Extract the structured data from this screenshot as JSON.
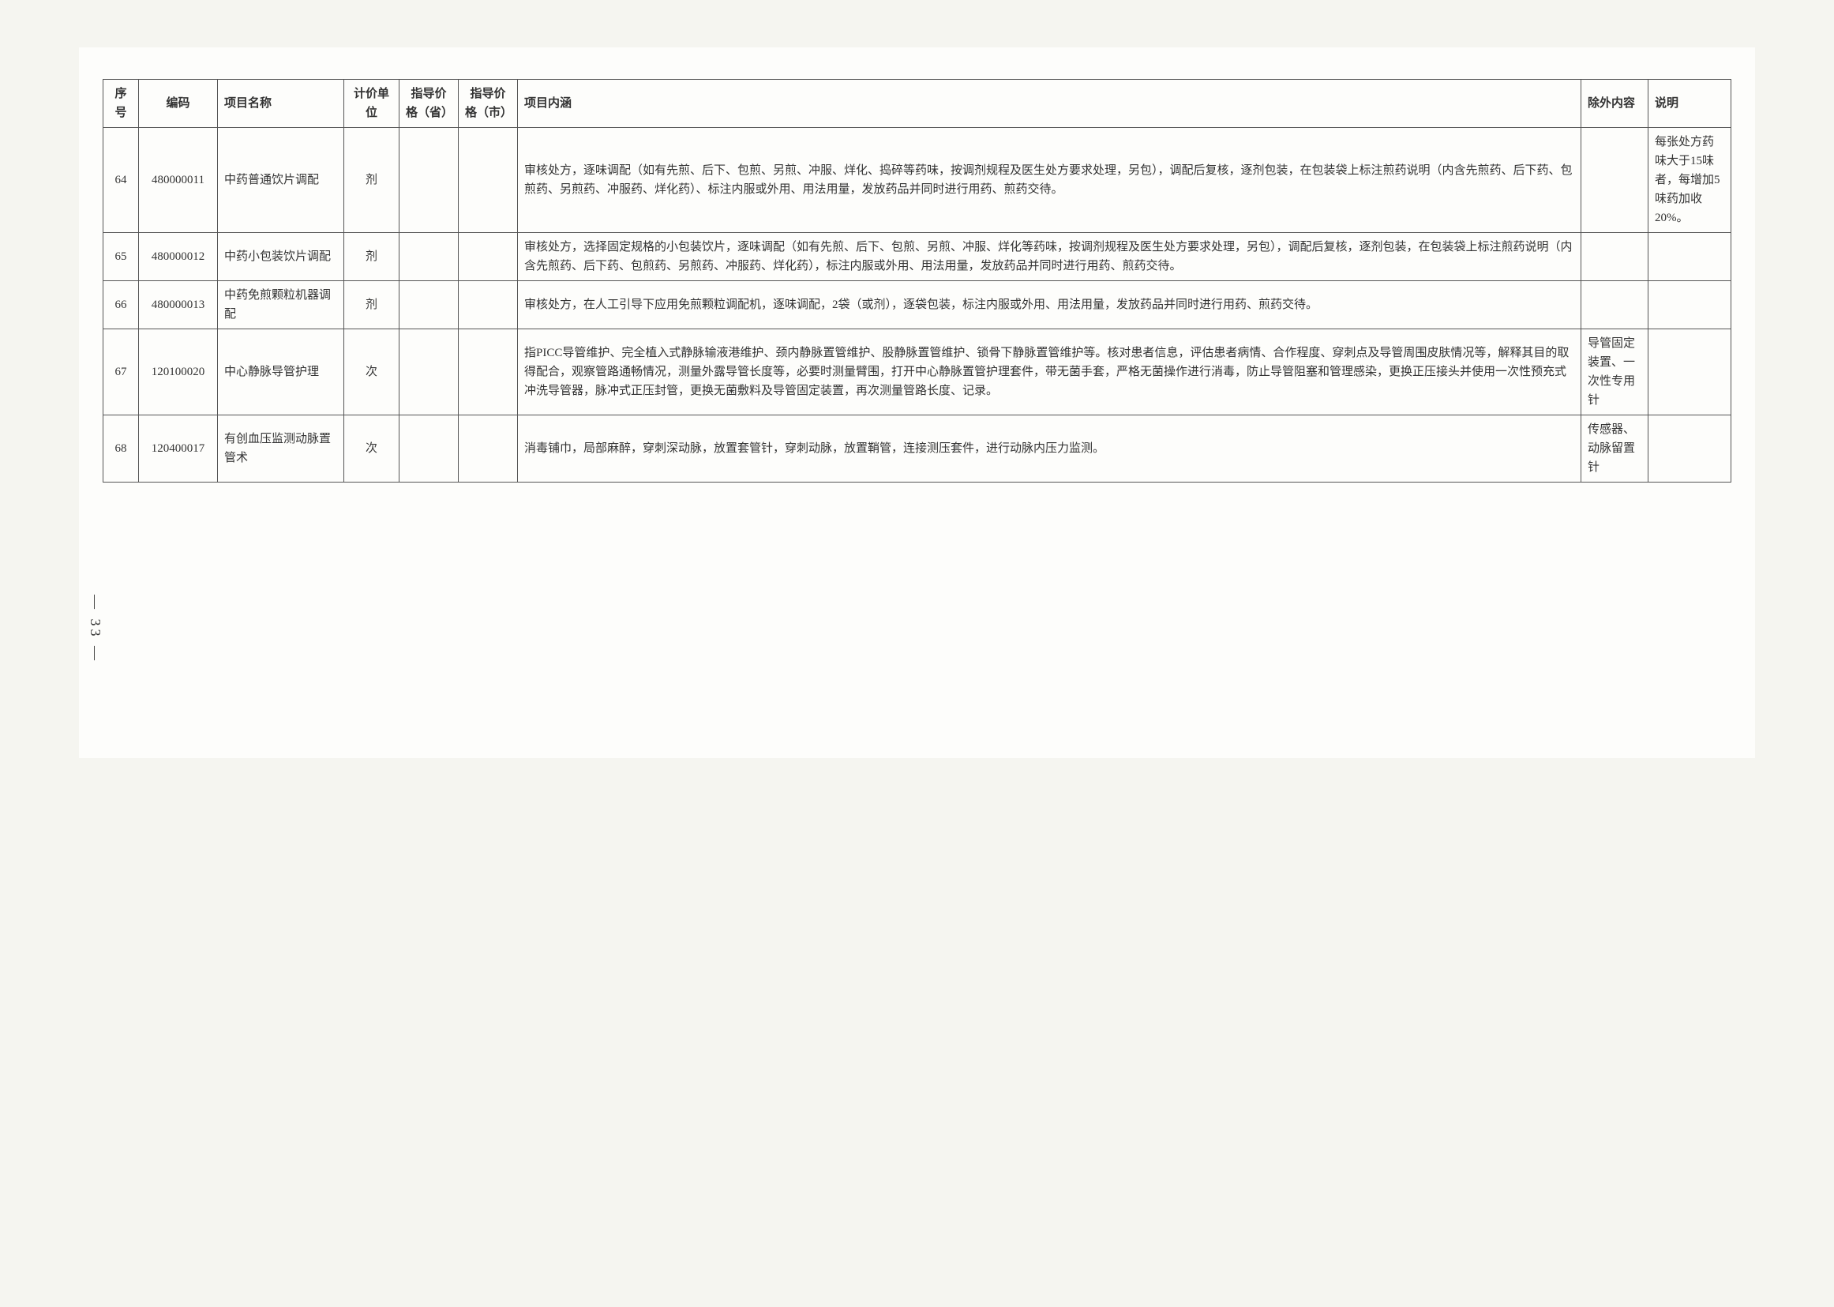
{
  "headers": {
    "seq": "序号",
    "code": "编码",
    "name": "项目名称",
    "unit": "计价单位",
    "price_prov": "指导价格（省）",
    "price_city": "指导价格（市）",
    "content": "项目内涵",
    "excl": "除外内容",
    "note": "说明"
  },
  "rows": [
    {
      "seq": "64",
      "code": "480000011",
      "name": "中药普通饮片调配",
      "unit": "剂",
      "price_prov": "",
      "price_city": "",
      "content": "审核处方，逐味调配（如有先煎、后下、包煎、另煎、冲服、烊化、捣碎等药味，按调剂规程及医生处方要求处理，另包），调配后复核，逐剂包装，在包装袋上标注煎药说明（内含先煎药、后下药、包煎药、另煎药、冲服药、烊化药）、标注内服或外用、用法用量，发放药品并同时进行用药、煎药交待。",
      "excl": "",
      "note": "每张处方药味大于15味者，每增加5味药加收20%。"
    },
    {
      "seq": "65",
      "code": "480000012",
      "name": "中药小包装饮片调配",
      "unit": "剂",
      "price_prov": "",
      "price_city": "",
      "content": "审核处方，选择固定规格的小包装饮片，逐味调配（如有先煎、后下、包煎、另煎、冲服、烊化等药味，按调剂规程及医生处方要求处理，另包），调配后复核，逐剂包装，在包装袋上标注煎药说明（内含先煎药、后下药、包煎药、另煎药、冲服药、烊化药），标注内服或外用、用法用量，发放药品并同时进行用药、煎药交待。",
      "excl": "",
      "note": ""
    },
    {
      "seq": "66",
      "code": "480000013",
      "name": "中药免煎颗粒机器调配",
      "unit": "剂",
      "price_prov": "",
      "price_city": "",
      "content": "审核处方，在人工引导下应用免煎颗粒调配机，逐味调配，2袋（或剂），逐袋包装，标注内服或外用、用法用量，发放药品并同时进行用药、煎药交待。",
      "excl": "",
      "note": ""
    },
    {
      "seq": "67",
      "code": "120100020",
      "name": "中心静脉导管护理",
      "unit": "次",
      "price_prov": "",
      "price_city": "",
      "content": "指PICC导管维护、完全植入式静脉输液港维护、颈内静脉置管维护、股静脉置管维护、锁骨下静脉置管维护等。核对患者信息，评估患者病情、合作程度、穿刺点及导管周围皮肤情况等，解释其目的取得配合，观察管路通畅情况，测量外露导管长度等，必要时测量臂围，打开中心静脉置管护理套件，带无菌手套，严格无菌操作进行消毒，防止导管阻塞和管理感染，更换正压接头并使用一次性预充式冲洗导管器，脉冲式正压封管，更换无菌敷料及导管固定装置，再次测量管路长度、记录。",
      "excl": "导管固定装置、一次性专用针",
      "note": ""
    },
    {
      "seq": "68",
      "code": "120400017",
      "name": "有创血压监测动脉置管术",
      "unit": "次",
      "price_prov": "",
      "price_city": "",
      "content": "消毒铺巾，局部麻醉，穿刺深动脉，放置套管针，穿刺动脉，放置鞘管，连接测压套件，进行动脉内压力监测。",
      "excl": "传感器、动脉留置针",
      "note": ""
    }
  ],
  "page_number": "— 33 —"
}
